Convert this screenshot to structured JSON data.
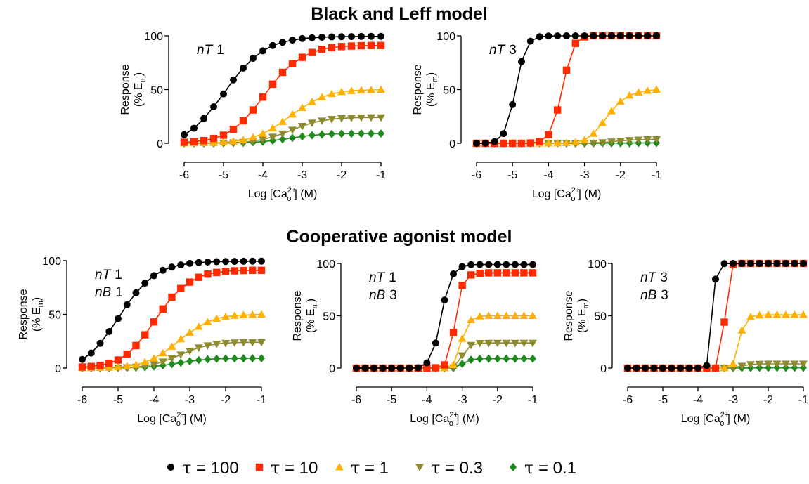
{
  "section_titles": [
    "Black and Leff model",
    "Cooperative agonist model"
  ],
  "x_axis_label": {
    "main": "Log [Ca",
    "sup": "2+",
    "sub": "o",
    "tail": "] (M)"
  },
  "y_axis_label": {
    "line1": "Response",
    "line2_pre": "(% E",
    "line2_sub": "m",
    "line2_post": ")"
  },
  "legend": [
    {
      "symbol": "τ",
      "text": " = 100",
      "marker": "circle",
      "color": "#000000"
    },
    {
      "symbol": "τ",
      "text": " = 10",
      "marker": "square",
      "color": "#ff2a00"
    },
    {
      "symbol": "τ",
      "text": " = 1",
      "marker": "triangle-up",
      "color": "#ffb000"
    },
    {
      "symbol": "τ",
      "text": " = 0.3",
      "marker": "triangle-down",
      "color": "#8e8a2e"
    },
    {
      "symbol": "τ",
      "text": " = 0.1",
      "marker": "diamond",
      "color": "#1e8a1e"
    }
  ],
  "chart_data": [
    {
      "type": "line",
      "section": "Black and Leff model",
      "annotations": [
        {
          "italic": "nT",
          "value": "1"
        }
      ],
      "xlim": [
        -6,
        -1
      ],
      "ylim": [
        0,
        100
      ],
      "xticks": [
        "-6",
        "-5",
        "-4",
        "-3",
        "-2",
        "-1"
      ],
      "yticks": [
        "0",
        "50",
        "100"
      ],
      "x": [
        -6,
        -5.75,
        -5.5,
        -5.25,
        -5,
        -4.75,
        -4.5,
        -4.25,
        -4,
        -3.75,
        -3.5,
        -3.25,
        -3,
        -2.75,
        -2.5,
        -2.25,
        -2,
        -1.75,
        -1.5,
        -1.25,
        -1
      ],
      "series": [
        {
          "name": "τ = 100",
          "marker": "circle",
          "color": "#000000",
          "values": [
            8,
            14,
            23,
            34,
            46,
            59,
            70,
            79,
            86,
            91,
            94,
            96,
            97.5,
            98.2,
            98.7,
            99,
            99.2,
            99.3,
            99.4,
            99.5,
            99.5
          ]
        },
        {
          "name": "τ = 10",
          "marker": "square",
          "color": "#ff2a00",
          "values": [
            1,
            1.5,
            2.5,
            4.5,
            7.5,
            13,
            21,
            31,
            43,
            55,
            66,
            74,
            80,
            84.5,
            87.5,
            89,
            90,
            90.5,
            90.8,
            91,
            91
          ]
        },
        {
          "name": "τ = 1",
          "marker": "triangle-up",
          "color": "#ffb000",
          "values": [
            0.1,
            0.2,
            0.3,
            0.5,
            1,
            1.8,
            3,
            5.5,
            9,
            14,
            20,
            27,
            33,
            38.5,
            43,
            46,
            47.8,
            48.8,
            49.4,
            49.7,
            50
          ]
        },
        {
          "name": "τ = 0.3",
          "marker": "triangle-down",
          "color": "#8e8a2e",
          "values": [
            0,
            0.05,
            0.1,
            0.2,
            0.3,
            0.6,
            1.1,
            2,
            3.5,
            6,
            9,
            12.5,
            16,
            19,
            21,
            22.5,
            23.3,
            23.7,
            23.9,
            24,
            24
          ]
        },
        {
          "name": "τ = 0.1",
          "marker": "diamond",
          "color": "#1e8a1e",
          "values": [
            0,
            0,
            0,
            0.1,
            0.2,
            0.3,
            0.5,
            0.9,
            1.5,
            2.5,
            3.7,
            5,
            6.4,
            7.4,
            8.2,
            8.7,
            8.9,
            9,
            9.1,
            9.1,
            9.1
          ]
        }
      ]
    },
    {
      "type": "line",
      "section": "Black and Leff model",
      "annotations": [
        {
          "italic": "nT",
          "value": "3"
        }
      ],
      "xlim": [
        -6,
        -1
      ],
      "ylim": [
        0,
        100
      ],
      "xticks": [
        "-6",
        "-5",
        "-4",
        "-3",
        "-2",
        "-1"
      ],
      "yticks": [
        "0",
        "50",
        "100"
      ],
      "x": [
        -6,
        -5.75,
        -5.5,
        -5.25,
        -5,
        -4.75,
        -4.5,
        -4.25,
        -4,
        -3.75,
        -3.5,
        -3.25,
        -3,
        -2.75,
        -2.5,
        -2.25,
        -2,
        -1.75,
        -1.5,
        -1.25,
        -1
      ],
      "series": [
        {
          "name": "τ = 100",
          "marker": "circle",
          "color": "#000000",
          "values": [
            0,
            0.2,
            1.5,
            9,
            36,
            76,
            95,
            99.2,
            99.8,
            100,
            100,
            100,
            100,
            100,
            100,
            100,
            100,
            100,
            100,
            100,
            100
          ]
        },
        {
          "name": "τ = 10",
          "marker": "square",
          "color": "#ff2a00",
          "values": [
            0,
            0,
            0,
            0,
            0,
            0,
            0.3,
            1.5,
            8,
            31,
            68,
            93,
            99,
            100,
            100,
            100,
            100,
            100,
            100,
            100,
            100
          ]
        },
        {
          "name": "τ = 1",
          "marker": "triangle-up",
          "color": "#ffb000",
          "values": [
            0,
            0,
            0,
            0,
            0,
            0,
            0,
            0,
            0,
            0.1,
            0.3,
            1,
            3,
            9,
            19,
            30,
            39,
            44.5,
            47.5,
            49,
            50
          ]
        },
        {
          "name": "τ = 0.3",
          "marker": "triangle-down",
          "color": "#8e8a2e",
          "values": [
            0,
            0,
            0,
            0,
            0,
            0,
            0,
            0,
            0,
            0,
            0,
            0,
            0.1,
            0.3,
            0.8,
            1.5,
            2.3,
            2.9,
            3.3,
            3.6,
            3.7
          ]
        },
        {
          "name": "τ = 0.1",
          "marker": "diamond",
          "color": "#1e8a1e",
          "values": [
            0,
            0,
            0,
            0,
            0,
            0,
            0,
            0,
            0,
            0,
            0,
            0,
            0,
            0,
            0.05,
            0.1,
            0.2,
            0.2,
            0.3,
            0.3,
            0.3
          ]
        }
      ]
    },
    {
      "type": "line",
      "section": "Cooperative agonist model",
      "annotations": [
        {
          "italic": "nT",
          "value": "1"
        },
        {
          "italic": "nB",
          "value": "1"
        }
      ],
      "xlim": [
        -6,
        -1
      ],
      "ylim": [
        0,
        100
      ],
      "xticks": [
        "-6",
        "-5",
        "-4",
        "-3",
        "-2",
        "-1"
      ],
      "yticks": [
        "0",
        "50",
        "100"
      ],
      "x": [
        -6,
        -5.75,
        -5.5,
        -5.25,
        -5,
        -4.75,
        -4.5,
        -4.25,
        -4,
        -3.75,
        -3.5,
        -3.25,
        -3,
        -2.75,
        -2.5,
        -2.25,
        -2,
        -1.75,
        -1.5,
        -1.25,
        -1
      ],
      "series": [
        {
          "name": "τ = 100",
          "marker": "circle",
          "color": "#000000",
          "values": [
            8,
            14,
            23,
            34,
            46,
            59,
            70,
            79,
            86,
            91,
            94,
            96,
            97.5,
            98.2,
            98.7,
            99,
            99.2,
            99.3,
            99.4,
            99.5,
            99.5
          ]
        },
        {
          "name": "τ = 10",
          "marker": "square",
          "color": "#ff2a00",
          "values": [
            1,
            1.5,
            2.5,
            4.5,
            7.5,
            13,
            21,
            31,
            43,
            55,
            66,
            74,
            80,
            84.5,
            87.5,
            89,
            90,
            90.5,
            90.8,
            91,
            91
          ]
        },
        {
          "name": "τ = 1",
          "marker": "triangle-up",
          "color": "#ffb000",
          "values": [
            0.1,
            0.2,
            0.3,
            0.5,
            1,
            1.8,
            3,
            5.5,
            9,
            14,
            20,
            27,
            33,
            38.5,
            43,
            46,
            47.8,
            48.8,
            49.4,
            49.7,
            50
          ]
        },
        {
          "name": "τ = 0.3",
          "marker": "triangle-down",
          "color": "#8e8a2e",
          "values": [
            0,
            0.05,
            0.1,
            0.2,
            0.3,
            0.6,
            1.1,
            2,
            3.5,
            6,
            9,
            12.5,
            16,
            19,
            21,
            22.5,
            23.3,
            23.7,
            23.9,
            24,
            24
          ]
        },
        {
          "name": "τ = 0.1",
          "marker": "diamond",
          "color": "#1e8a1e",
          "values": [
            0,
            0,
            0,
            0.1,
            0.2,
            0.3,
            0.5,
            0.9,
            1.5,
            2.5,
            3.7,
            5,
            6.4,
            7.4,
            8.2,
            8.7,
            8.9,
            9,
            9.1,
            9.1,
            9.1
          ]
        }
      ]
    },
    {
      "type": "line",
      "section": "Cooperative agonist model",
      "annotations": [
        {
          "italic": "nT",
          "value": "1"
        },
        {
          "italic": "nB",
          "value": "3"
        }
      ],
      "xlim": [
        -6,
        -1
      ],
      "ylim": [
        0,
        100
      ],
      "xticks": [
        "-6",
        "-5",
        "-4",
        "-3",
        "-2",
        "-1"
      ],
      "yticks": [
        "0",
        "50",
        "100"
      ],
      "x": [
        -6,
        -5.75,
        -5.5,
        -5.25,
        -5,
        -4.75,
        -4.5,
        -4.25,
        -4,
        -3.75,
        -3.5,
        -3.25,
        -3,
        -2.75,
        -2.5,
        -2.25,
        -2,
        -1.75,
        -1.5,
        -1.25,
        -1
      ],
      "series": [
        {
          "name": "τ = 100",
          "marker": "circle",
          "color": "#000000",
          "values": [
            0,
            0,
            0,
            0,
            0,
            0,
            0,
            0.3,
            5,
            24,
            65,
            90,
            97,
            98.8,
            99,
            99,
            99,
            99,
            99,
            99,
            99
          ]
        },
        {
          "name": "τ = 10",
          "marker": "square",
          "color": "#ff2a00",
          "values": [
            0,
            0,
            0,
            0,
            0,
            0,
            0,
            0,
            0,
            0.3,
            3,
            34,
            79,
            89,
            90.5,
            91,
            91,
            91,
            91,
            91,
            91
          ]
        },
        {
          "name": "τ = 1",
          "marker": "triangle-up",
          "color": "#ffb000",
          "values": [
            0,
            0,
            0,
            0,
            0,
            0,
            0,
            0,
            0,
            0,
            0,
            3,
            28,
            46,
            49.5,
            50,
            50,
            50,
            50,
            50,
            50
          ]
        },
        {
          "name": "τ = 0.3",
          "marker": "triangle-down",
          "color": "#8e8a2e",
          "values": [
            0,
            0,
            0,
            0,
            0,
            0,
            0,
            0,
            0,
            0,
            0,
            0.5,
            12,
            22,
            23.8,
            24,
            24,
            24,
            24,
            24,
            24
          ]
        },
        {
          "name": "τ = 0.1",
          "marker": "diamond",
          "color": "#1e8a1e",
          "values": [
            0,
            0,
            0,
            0,
            0,
            0,
            0,
            0,
            0,
            0,
            0,
            0.1,
            4,
            8,
            8.9,
            9,
            9,
            9,
            9,
            9,
            9
          ]
        }
      ]
    },
    {
      "type": "line",
      "section": "Cooperative agonist model",
      "annotations": [
        {
          "italic": "nT",
          "value": "3"
        },
        {
          "italic": "nB",
          "value": "3"
        }
      ],
      "xlim": [
        -6,
        -1
      ],
      "ylim": [
        0,
        100
      ],
      "xticks": [
        "-6",
        "-5",
        "-4",
        "-3",
        "-2",
        "-1"
      ],
      "yticks": [
        "0",
        "50",
        "100"
      ],
      "x": [
        -6,
        -5.75,
        -5.5,
        -5.25,
        -5,
        -4.75,
        -4.5,
        -4.25,
        -4,
        -3.75,
        -3.5,
        -3.25,
        -3,
        -2.75,
        -2.5,
        -2.25,
        -2,
        -1.75,
        -1.5,
        -1.25,
        -1
      ],
      "series": [
        {
          "name": "τ = 100",
          "marker": "circle",
          "color": "#000000",
          "values": [
            0,
            0,
            0,
            0,
            0,
            0,
            0,
            0,
            0,
            2.5,
            85,
            99.8,
            100,
            100,
            100,
            100,
            100,
            100,
            100,
            100,
            100
          ]
        },
        {
          "name": "τ = 10",
          "marker": "square",
          "color": "#ff2a00",
          "values": [
            0,
            0,
            0,
            0,
            0,
            0,
            0,
            0,
            0,
            0,
            0,
            44,
            99,
            100,
            100,
            100,
            100,
            100,
            100,
            100,
            100
          ]
        },
        {
          "name": "τ = 1",
          "marker": "triangle-up",
          "color": "#ffb000",
          "values": [
            0,
            0,
            0,
            0,
            0,
            0,
            0,
            0,
            0,
            0,
            0,
            0,
            4,
            36,
            49,
            50.5,
            51,
            51,
            51,
            51,
            51
          ]
        },
        {
          "name": "τ = 0.3",
          "marker": "triangle-down",
          "color": "#8e8a2e",
          "values": [
            0,
            0,
            0,
            0,
            0,
            0,
            0,
            0,
            0,
            0,
            0,
            0,
            0.2,
            2,
            3.5,
            3.9,
            4,
            4,
            4,
            4,
            4
          ]
        },
        {
          "name": "τ = 0.1",
          "marker": "diamond",
          "color": "#1e8a1e",
          "values": [
            0,
            0,
            0,
            0,
            0,
            0,
            0,
            0,
            0,
            0,
            0,
            0,
            0,
            0.1,
            0.2,
            0.3,
            0.3,
            0.3,
            0.3,
            0.3,
            0.3
          ]
        }
      ]
    }
  ]
}
